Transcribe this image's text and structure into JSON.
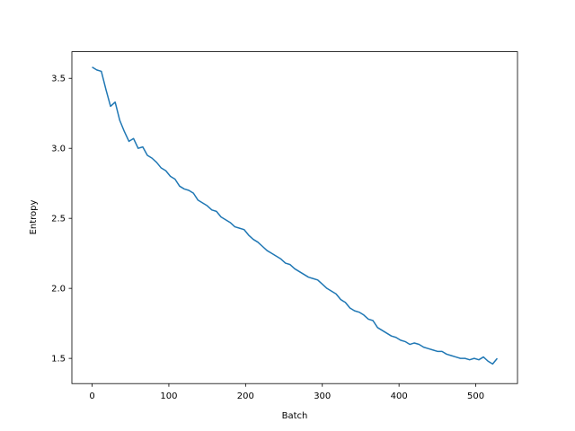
{
  "chart_data": {
    "type": "line",
    "xlabel": "Batch",
    "ylabel": "Entropy",
    "x": [
      0,
      6,
      12,
      18,
      24,
      30,
      36,
      42,
      48,
      54,
      60,
      66,
      72,
      78,
      84,
      90,
      96,
      102,
      108,
      114,
      120,
      126,
      132,
      138,
      144,
      150,
      156,
      162,
      168,
      174,
      180,
      186,
      192,
      198,
      204,
      210,
      216,
      222,
      228,
      234,
      240,
      246,
      252,
      258,
      264,
      270,
      276,
      282,
      288,
      294,
      300,
      306,
      312,
      318,
      324,
      330,
      336,
      342,
      348,
      354,
      360,
      366,
      372,
      378,
      384,
      390,
      396,
      402,
      408,
      414,
      420,
      426,
      432,
      438,
      444,
      450,
      456,
      462,
      468,
      474,
      480,
      486,
      492,
      498,
      504,
      510,
      516,
      522,
      528
    ],
    "series": [
      {
        "name": "Entropy",
        "color": "#1f77b4",
        "values": [
          3.58,
          3.56,
          3.55,
          3.42,
          3.3,
          3.33,
          3.2,
          3.12,
          3.05,
          3.07,
          3.0,
          3.01,
          2.95,
          2.93,
          2.9,
          2.86,
          2.84,
          2.8,
          2.78,
          2.73,
          2.71,
          2.7,
          2.68,
          2.63,
          2.61,
          2.59,
          2.56,
          2.55,
          2.51,
          2.49,
          2.47,
          2.44,
          2.43,
          2.42,
          2.38,
          2.35,
          2.33,
          2.3,
          2.27,
          2.25,
          2.23,
          2.21,
          2.18,
          2.17,
          2.14,
          2.12,
          2.1,
          2.08,
          2.07,
          2.06,
          2.03,
          2.0,
          1.98,
          1.96,
          1.92,
          1.9,
          1.86,
          1.84,
          1.83,
          1.81,
          1.78,
          1.77,
          1.72,
          1.7,
          1.68,
          1.66,
          1.65,
          1.63,
          1.62,
          1.6,
          1.61,
          1.6,
          1.58,
          1.57,
          1.56,
          1.55,
          1.55,
          1.53,
          1.52,
          1.51,
          1.5,
          1.5,
          1.49,
          1.5,
          1.49,
          1.51,
          1.48,
          1.46,
          1.5
        ]
      }
    ],
    "xlim": [
      -26.4,
      554.4
    ],
    "ylim": [
      1.32,
      3.69
    ],
    "xticks": [
      0,
      100,
      200,
      300,
      400,
      500
    ],
    "yticks": [
      1.5,
      {
        "value": 2.0,
        "label": "2.0"
      },
      2.5,
      {
        "value": 3.0,
        "label": "3.0"
      },
      3.5
    ]
  }
}
